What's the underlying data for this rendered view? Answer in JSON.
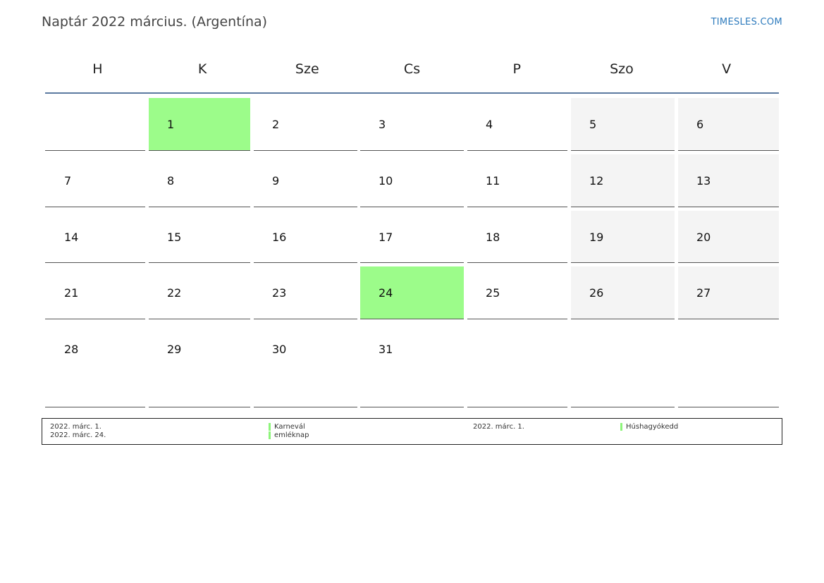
{
  "header": {
    "title": "Naptár 2022 március. (Argentína)",
    "brand": "TIMESLES.COM"
  },
  "weekdays": [
    "H",
    "K",
    "Sze",
    "Cs",
    "P",
    "Szo",
    "V"
  ],
  "colors": {
    "holiday": "#9cfc8a",
    "weekend": "#f4f4f4",
    "header_rule": "#5b7aa0",
    "brand": "#2e7bbd"
  },
  "weeks": [
    [
      {
        "day": "",
        "holiday": false,
        "weekend": false
      },
      {
        "day": "1",
        "holiday": true,
        "weekend": false
      },
      {
        "day": "2",
        "holiday": false,
        "weekend": false
      },
      {
        "day": "3",
        "holiday": false,
        "weekend": false
      },
      {
        "day": "4",
        "holiday": false,
        "weekend": false
      },
      {
        "day": "5",
        "holiday": false,
        "weekend": true
      },
      {
        "day": "6",
        "holiday": false,
        "weekend": true
      }
    ],
    [
      {
        "day": "7",
        "holiday": false,
        "weekend": false
      },
      {
        "day": "8",
        "holiday": false,
        "weekend": false
      },
      {
        "day": "9",
        "holiday": false,
        "weekend": false
      },
      {
        "day": "10",
        "holiday": false,
        "weekend": false
      },
      {
        "day": "11",
        "holiday": false,
        "weekend": false
      },
      {
        "day": "12",
        "holiday": false,
        "weekend": true
      },
      {
        "day": "13",
        "holiday": false,
        "weekend": true
      }
    ],
    [
      {
        "day": "14",
        "holiday": false,
        "weekend": false
      },
      {
        "day": "15",
        "holiday": false,
        "weekend": false
      },
      {
        "day": "16",
        "holiday": false,
        "weekend": false
      },
      {
        "day": "17",
        "holiday": false,
        "weekend": false
      },
      {
        "day": "18",
        "holiday": false,
        "weekend": false
      },
      {
        "day": "19",
        "holiday": false,
        "weekend": true
      },
      {
        "day": "20",
        "holiday": false,
        "weekend": true
      }
    ],
    [
      {
        "day": "21",
        "holiday": false,
        "weekend": false
      },
      {
        "day": "22",
        "holiday": false,
        "weekend": false
      },
      {
        "day": "23",
        "holiday": false,
        "weekend": false
      },
      {
        "day": "24",
        "holiday": true,
        "weekend": false
      },
      {
        "day": "25",
        "holiday": false,
        "weekend": false
      },
      {
        "day": "26",
        "holiday": false,
        "weekend": true
      },
      {
        "day": "27",
        "holiday": false,
        "weekend": true
      }
    ],
    [
      {
        "day": "28",
        "holiday": false,
        "weekend": false
      },
      {
        "day": "29",
        "holiday": false,
        "weekend": false
      },
      {
        "day": "30",
        "holiday": false,
        "weekend": false
      },
      {
        "day": "31",
        "holiday": false,
        "weekend": false
      },
      {
        "day": "",
        "holiday": false,
        "weekend": false
      },
      {
        "day": "",
        "holiday": false,
        "weekend": false
      },
      {
        "day": "",
        "holiday": false,
        "weekend": false
      }
    ]
  ],
  "legend": {
    "left": [
      {
        "date": "2022. márc. 1.",
        "name": "Karnevál"
      },
      {
        "date": "2022. márc. 24.",
        "name": "emléknap"
      }
    ],
    "right": [
      {
        "date": "2022. márc. 1.",
        "name": "Húshagyókedd"
      }
    ]
  }
}
